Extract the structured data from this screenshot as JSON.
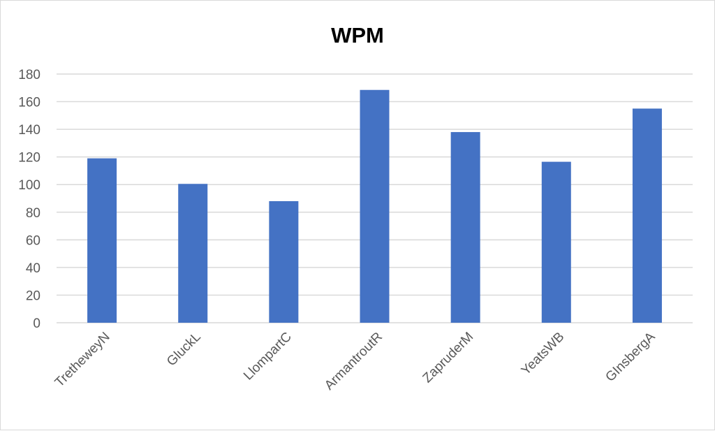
{
  "chart_data": {
    "type": "bar",
    "title": "WPM",
    "xlabel": "",
    "ylabel": "",
    "categories": [
      "TretheweyN",
      "GluckL",
      "LlompartC",
      "ArmantroutR",
      "ZapruderM",
      "YeatsWB",
      "GInsbergA"
    ],
    "series": [
      {
        "values": [
          119,
          100.5,
          88,
          168.5,
          138,
          116.5,
          155
        ]
      }
    ],
    "ylim": [
      0,
      180
    ],
    "yticks": [
      0,
      20,
      40,
      60,
      80,
      100,
      120,
      140,
      160,
      180
    ],
    "grid": true,
    "legend": "none",
    "bar_color": "#4472c4"
  }
}
